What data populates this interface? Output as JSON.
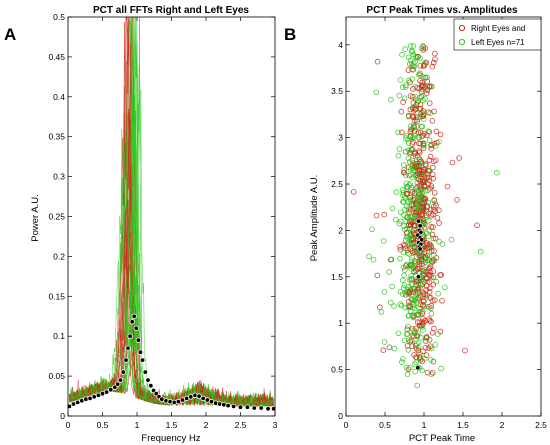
{
  "panel_labels": [
    "A",
    "B"
  ],
  "chart_data": [
    {
      "type": "line",
      "title": "PCT all FFTs Right and Left Eyes",
      "xlabel": "Frequency Hz",
      "ylabel": "Power A.U.",
      "xlim": [
        0,
        3
      ],
      "ylim": [
        0,
        0.5
      ],
      "xticks": [
        "0",
        "0.5",
        "1",
        "1.5",
        "2",
        "2.5",
        "3"
      ],
      "yticks": [
        "0",
        "0.05",
        "0.1",
        "0.15",
        "0.2",
        "0.25",
        "0.3",
        "0.35",
        "0.4",
        "0.45",
        "0.5"
      ],
      "colors": {
        "right": "#cc2a1a",
        "left": "#2ec81e",
        "mean": "#000000"
      },
      "mean_series": {
        "x": [
          0.02,
          0.08,
          0.14,
          0.2,
          0.26,
          0.32,
          0.38,
          0.44,
          0.5,
          0.56,
          0.62,
          0.68,
          0.72,
          0.76,
          0.8,
          0.84,
          0.87,
          0.9,
          0.93,
          0.96,
          0.99,
          1.02,
          1.05,
          1.08,
          1.12,
          1.16,
          1.2,
          1.24,
          1.28,
          1.32,
          1.36,
          1.42,
          1.48,
          1.54,
          1.6,
          1.66,
          1.72,
          1.78,
          1.84,
          1.9,
          1.96,
          2.02,
          2.08,
          2.14,
          2.2,
          2.26,
          2.32,
          2.4,
          2.5,
          2.6,
          2.7,
          2.8,
          2.9,
          2.98
        ],
        "y": [
          0.012,
          0.015,
          0.017,
          0.019,
          0.021,
          0.022,
          0.024,
          0.026,
          0.028,
          0.03,
          0.033,
          0.036,
          0.04,
          0.045,
          0.055,
          0.07,
          0.085,
          0.1,
          0.118,
          0.125,
          0.11,
          0.095,
          0.08,
          0.07,
          0.055,
          0.045,
          0.038,
          0.032,
          0.028,
          0.024,
          0.021,
          0.019,
          0.018,
          0.017,
          0.018,
          0.02,
          0.022,
          0.024,
          0.026,
          0.025,
          0.022,
          0.02,
          0.018,
          0.016,
          0.015,
          0.014,
          0.013,
          0.012,
          0.011,
          0.011,
          0.01,
          0.01,
          0.009,
          0.009
        ]
      }
    },
    {
      "type": "scatter",
      "title": "PCT Peak Times  vs. Amplitudes",
      "xlabel": "PCT Peak Time",
      "ylabel": "Peak Amplitude A.U.",
      "xlim": [
        0,
        2.5
      ],
      "ylim": [
        0,
        4.3
      ],
      "xticks": [
        "0",
        "0.5",
        "1",
        "1.5",
        "2",
        "2.5"
      ],
      "yticks": [
        "0",
        "0.5",
        "1",
        "1.5",
        "2",
        "2.5",
        "3",
        "3.5",
        "4"
      ],
      "legend": [
        "Right Eyes and",
        "Left Eyes n=71"
      ],
      "legend_position": "top-right",
      "series": [
        {
          "color": "#cc2a1a",
          "center_x": 0.95,
          "center_y": 2.0
        },
        {
          "color": "#2ec81e",
          "center_x": 0.9,
          "center_y": 1.9
        }
      ],
      "mean_points": {
        "x": [
          0.93,
          0.95,
          0.94,
          0.96,
          0.92,
          0.95,
          0.97,
          0.93,
          0.96,
          0.94,
          0.95,
          0.93,
          0.92
        ],
        "y": [
          2.1,
          2.05,
          2.0,
          1.98,
          1.95,
          1.92,
          1.9,
          1.87,
          1.85,
          1.82,
          1.8,
          1.5,
          0.52
        ]
      }
    }
  ]
}
